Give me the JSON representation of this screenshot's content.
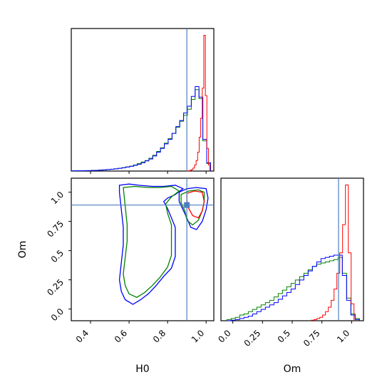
{
  "chart_data": {
    "type": "corner",
    "parameters": [
      "H0",
      "Om"
    ],
    "xlabels": [
      "H0",
      "Om"
    ],
    "ylabels": [
      "",
      "Om"
    ],
    "truths": {
      "H0": 0.9,
      "Om": 0.89
    },
    "truth_color": "#4c7fbf",
    "series": [
      {
        "color": "#ff0000"
      },
      {
        "color": "#008000"
      },
      {
        "color": "#0000ff"
      }
    ],
    "panels": [
      {
        "id": "hist-H0",
        "type": "histogram",
        "xlim": [
          0.3,
          1.04
        ],
        "xticks": [
          0.4,
          0.6,
          0.8,
          1.0
        ],
        "bins": [
          0.303,
          0.323,
          0.343,
          0.363,
          0.383,
          0.403,
          0.423,
          0.443,
          0.463,
          0.483,
          0.503,
          0.523,
          0.543,
          0.563,
          0.583,
          0.603,
          0.623,
          0.643,
          0.663,
          0.683,
          0.703,
          0.723,
          0.743,
          0.763,
          0.783,
          0.803,
          0.823,
          0.843,
          0.863,
          0.883,
          0.903,
          0.923,
          0.943,
          0.963,
          0.983,
          1.003,
          1.023
        ],
        "red_bins": [
          0.9,
          0.908,
          0.916,
          0.924,
          0.932,
          0.94,
          0.948,
          0.956,
          0.964,
          0.972,
          0.98,
          0.988,
          0.996,
          1.004,
          1.012,
          1.02
        ],
        "red_counts": [
          0.2,
          0.4,
          1,
          2,
          4,
          8,
          14,
          25,
          45,
          70,
          110,
          180,
          100,
          30,
          8
        ],
        "green_counts": [
          0.2,
          0.3,
          0.4,
          0.5,
          0.6,
          0.8,
          1,
          1.3,
          1.6,
          2,
          2.5,
          3,
          3.8,
          4.5,
          5.5,
          6.5,
          8,
          10,
          12,
          14,
          17,
          21,
          26,
          31,
          37,
          43,
          50,
          58,
          66,
          74,
          82,
          95,
          108,
          96,
          40,
          10
        ],
        "blue_counts": [
          0.2,
          0.3,
          0.3,
          0.5,
          0.6,
          0.8,
          1,
          1.2,
          1.5,
          2,
          2.4,
          3,
          3.6,
          4.4,
          5.3,
          6.3,
          7.5,
          9,
          11,
          13.5,
          16,
          20,
          25,
          30,
          36,
          42,
          50,
          59,
          67,
          77,
          86,
          99,
          112,
          98,
          42,
          11
        ]
      },
      {
        "id": "hist-Om",
        "type": "histogram",
        "xlim": [
          -0.1,
          1.1
        ],
        "xticks": [
          0.0,
          0.25,
          0.5,
          0.75,
          1.0
        ],
        "bins": [
          -0.05,
          -0.014,
          0.022,
          0.058,
          0.094,
          0.13,
          0.166,
          0.202,
          0.238,
          0.274,
          0.31,
          0.346,
          0.382,
          0.418,
          0.454,
          0.49,
          0.526,
          0.562,
          0.598,
          0.634,
          0.67,
          0.706,
          0.742,
          0.778,
          0.814,
          0.85,
          0.886,
          0.922,
          0.958,
          0.994,
          1.03,
          1.066
        ],
        "red_bins": [
          0.66,
          0.684,
          0.708,
          0.732,
          0.756,
          0.78,
          0.804,
          0.828,
          0.852,
          0.876,
          0.9,
          0.924,
          0.948,
          0.972,
          0.996,
          1.02
        ],
        "red_counts": [
          0.5,
          1,
          2,
          3,
          5,
          8,
          12,
          18,
          28,
          42,
          60,
          85,
          120,
          60,
          15
        ],
        "green_counts": [
          1,
          2,
          3,
          5,
          6,
          8,
          10,
          12,
          14,
          16,
          18,
          21,
          24,
          27,
          30,
          33,
          36,
          39,
          42,
          45,
          48,
          50,
          51,
          52,
          53,
          54,
          56,
          42,
          20,
          6,
          2
        ],
        "blue_counts": [
          0,
          0.5,
          1,
          2,
          3,
          4,
          6,
          8,
          10,
          12,
          14,
          16,
          19,
          22,
          25,
          28,
          32,
          36,
          40,
          44,
          48,
          52,
          55,
          56,
          57,
          58,
          58,
          40,
          18,
          5,
          1
        ]
      },
      {
        "id": "contour-H0-Om",
        "type": "contour",
        "xlim": [
          0.3,
          1.04
        ],
        "ylim": [
          -0.1,
          1.12
        ],
        "xticks": [
          0.4,
          0.6,
          0.8,
          1.0
        ],
        "yticks": [
          0.0,
          0.25,
          0.5,
          0.75,
          1.0
        ],
        "contours": [
          {
            "series": 2,
            "points": [
              [
                0.55,
                1.06
              ],
              [
                0.6,
                1.07
              ],
              [
                0.65,
                1.06
              ],
              [
                0.72,
                1.05
              ],
              [
                0.78,
                1.05
              ],
              [
                0.84,
                1.06
              ],
              [
                0.88,
                1.03
              ],
              [
                0.84,
                0.98
              ],
              [
                0.8,
                0.95
              ],
              [
                0.78,
                0.92
              ],
              [
                0.8,
                0.86
              ],
              [
                0.82,
                0.78
              ],
              [
                0.84,
                0.7
              ],
              [
                0.84,
                0.55
              ],
              [
                0.84,
                0.45
              ],
              [
                0.82,
                0.35
              ],
              [
                0.78,
                0.28
              ],
              [
                0.74,
                0.2
              ],
              [
                0.7,
                0.13
              ],
              [
                0.66,
                0.08
              ],
              [
                0.62,
                0.04
              ],
              [
                0.58,
                0.08
              ],
              [
                0.56,
                0.15
              ],
              [
                0.55,
                0.25
              ],
              [
                0.56,
                0.4
              ],
              [
                0.57,
                0.55
              ],
              [
                0.57,
                0.7
              ],
              [
                0.56,
                0.85
              ],
              [
                0.55,
                1.0
              ]
            ]
          },
          {
            "series": 1,
            "points": [
              [
                0.57,
                1.04
              ],
              [
                0.63,
                1.05
              ],
              [
                0.7,
                1.04
              ],
              [
                0.76,
                1.04
              ],
              [
                0.82,
                1.05
              ],
              [
                0.86,
                1.01
              ],
              [
                0.82,
                0.96
              ],
              [
                0.79,
                0.9
              ],
              [
                0.8,
                0.82
              ],
              [
                0.82,
                0.72
              ],
              [
                0.82,
                0.58
              ],
              [
                0.82,
                0.46
              ],
              [
                0.8,
                0.36
              ],
              [
                0.76,
                0.27
              ],
              [
                0.72,
                0.2
              ],
              [
                0.68,
                0.14
              ],
              [
                0.64,
                0.1
              ],
              [
                0.6,
                0.13
              ],
              [
                0.58,
                0.2
              ],
              [
                0.57,
                0.3
              ],
              [
                0.58,
                0.44
              ],
              [
                0.59,
                0.58
              ],
              [
                0.59,
                0.72
              ],
              [
                0.58,
                0.88
              ]
            ]
          },
          {
            "series": 2,
            "points": [
              [
                0.86,
                1.0
              ],
              [
                0.9,
                1.03
              ],
              [
                0.95,
                1.04
              ],
              [
                1.0,
                1.03
              ],
              [
                1.01,
                0.95
              ],
              [
                1.0,
                0.85
              ],
              [
                0.98,
                0.75
              ],
              [
                0.95,
                0.68
              ],
              [
                0.92,
                0.7
              ],
              [
                0.9,
                0.78
              ],
              [
                0.88,
                0.85
              ],
              [
                0.86,
                0.92
              ]
            ]
          },
          {
            "series": 1,
            "points": [
              [
                0.87,
                0.98
              ],
              [
                0.91,
                1.01
              ],
              [
                0.96,
                1.02
              ],
              [
                0.99,
                1.0
              ],
              [
                0.99,
                0.92
              ],
              [
                0.98,
                0.84
              ],
              [
                0.96,
                0.76
              ],
              [
                0.93,
                0.72
              ],
              [
                0.9,
                0.76
              ],
              [
                0.89,
                0.84
              ],
              [
                0.87,
                0.91
              ]
            ]
          },
          {
            "series": 0,
            "points": [
              [
                0.9,
                0.99
              ],
              [
                0.94,
                1.01
              ],
              [
                0.98,
                1.0
              ],
              [
                0.99,
                0.92
              ],
              [
                0.98,
                0.84
              ],
              [
                0.96,
                0.78
              ],
              [
                0.93,
                0.8
              ],
              [
                0.91,
                0.86
              ],
              [
                0.9,
                0.93
              ]
            ]
          }
        ]
      }
    ]
  }
}
